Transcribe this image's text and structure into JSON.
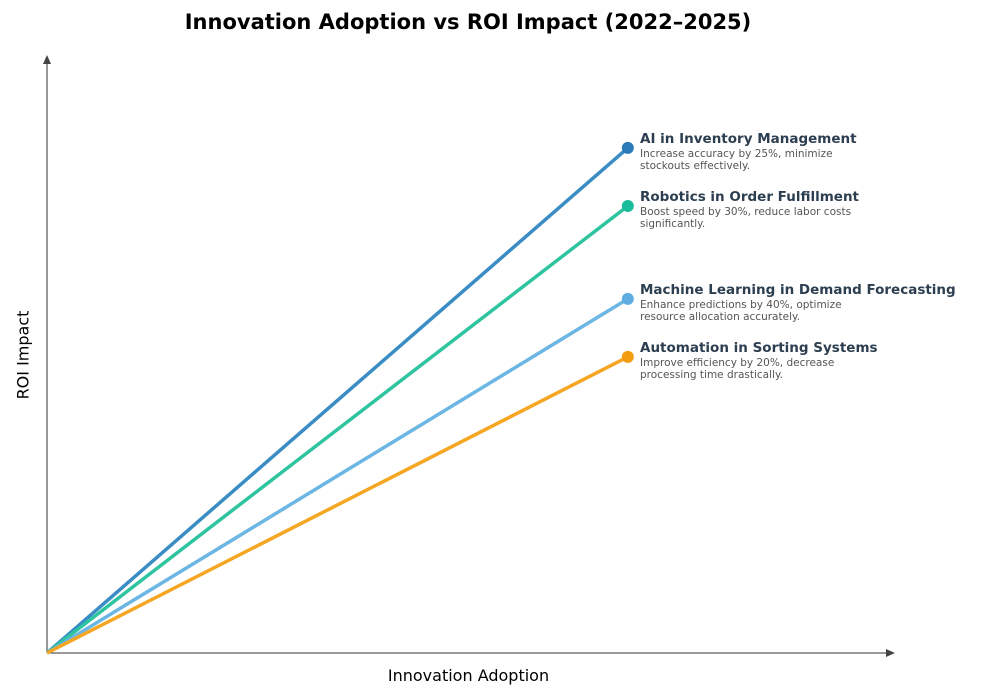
{
  "chart_data": {
    "type": "line",
    "title": "Innovation Adoption vs ROI Impact (2022–2025)",
    "xlabel": "Innovation Adoption",
    "ylabel": "ROI Impact",
    "xlim": [
      0,
      1.46
    ],
    "ylim": [
      0,
      1.03
    ],
    "grid": false,
    "ticks": false,
    "series": [
      {
        "name": "AI in Inventory Management",
        "description": "Increase accuracy by 25%, minimize stockouts effectively.",
        "x": [
          0,
          1
        ],
        "y": [
          0,
          0.87
        ],
        "color": "#3a8cc4",
        "marker_color": "#2a7ab9"
      },
      {
        "name": "Robotics in Order Fulfillment",
        "description": "Boost speed by 30%, reduce labor costs significantly.",
        "x": [
          0,
          1
        ],
        "y": [
          0,
          0.77
        ],
        "color": "#2ec4a0",
        "marker_color": "#1abc9c"
      },
      {
        "name": "Machine Learning in Demand Forecasting",
        "description": "Enhance predictions by 40%, optimize resource allocation accurately.",
        "x": [
          0,
          1
        ],
        "y": [
          0,
          0.61
        ],
        "color": "#6cb6e3",
        "marker_color": "#5dade2"
      },
      {
        "name": "Automation in Sorting Systems",
        "description": "Improve efficiency by 20%, decrease processing time drastically.",
        "x": [
          0,
          1
        ],
        "y": [
          0,
          0.51
        ],
        "color": "#f5a623",
        "marker_color": "#f39c12"
      }
    ]
  }
}
